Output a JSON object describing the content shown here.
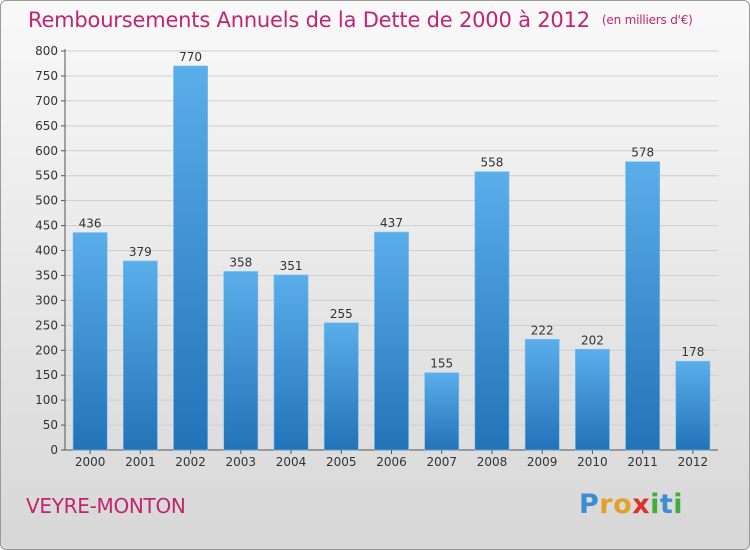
{
  "title": "Remboursements Annuels de la Dette de 2000 à 2012",
  "unit_label": "(en milliers d'€)",
  "commune": "VEYRE-MONTON",
  "brand": {
    "letters": [
      {
        "char": "P",
        "color": "#3b8ed4"
      },
      {
        "char": "r",
        "color": "#e0a22a"
      },
      {
        "char": "o",
        "color": "#e0a22a"
      },
      {
        "char": "x",
        "color": "#d9342c"
      },
      {
        "char": "i",
        "color": "#3fae3a"
      },
      {
        "char": "t",
        "color": "#3b8ed4"
      },
      {
        "char": "i",
        "color": "#3fae3a"
      }
    ]
  },
  "colors": {
    "title": "#c2256e",
    "bar_top": "#5aaeea",
    "bar_bottom": "#2273b8",
    "grid": "#cfcfcf",
    "text": "#333333"
  },
  "chart_data": {
    "type": "bar",
    "categories": [
      "2000",
      "2001",
      "2002",
      "2003",
      "2004",
      "2005",
      "2006",
      "2007",
      "2008",
      "2009",
      "2010",
      "2011",
      "2012"
    ],
    "values": [
      436,
      379,
      770,
      358,
      351,
      255,
      437,
      155,
      558,
      222,
      202,
      578,
      178
    ],
    "ylim": [
      0,
      800
    ],
    "ytick_step": 50,
    "grid": true,
    "data_labels": true
  }
}
